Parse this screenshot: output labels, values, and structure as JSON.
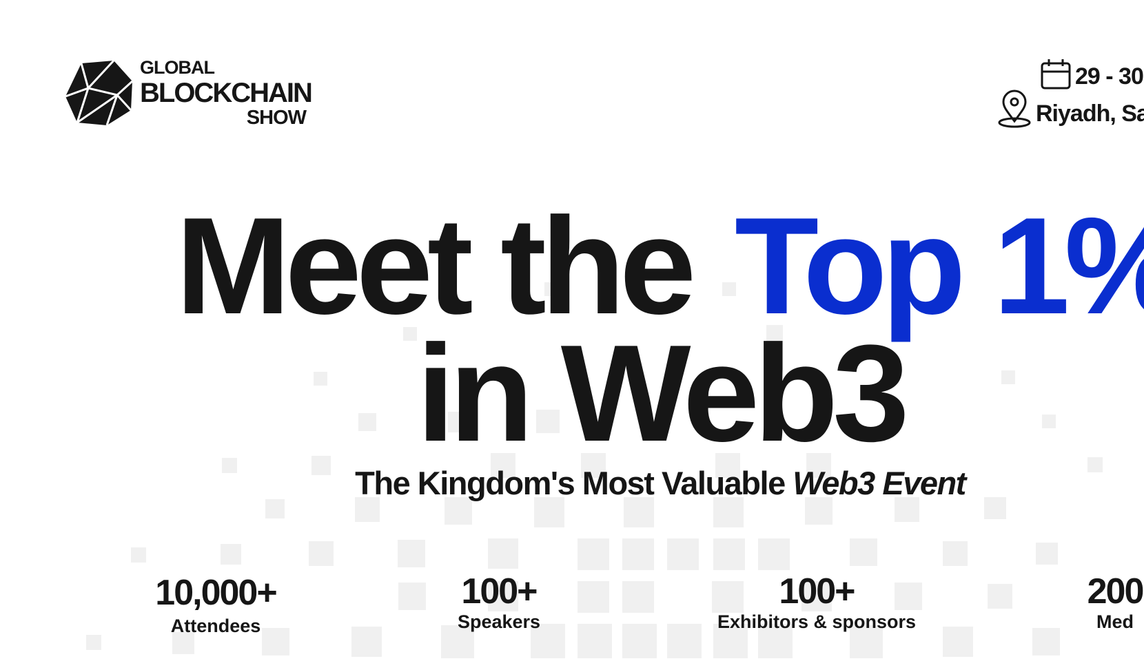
{
  "header": {
    "logo": [
      "GLOBAL",
      "BLOCKCHAIN",
      "SHOW"
    ],
    "date": "29 - 30",
    "location": "Riyadh, Sa"
  },
  "hero": {
    "headline": [
      "Meet the",
      "Top 1%",
      "in Web3"
    ],
    "subtitle": [
      "The Kingdom's Most Valuable",
      "Web3 Event"
    ]
  },
  "stats": [
    {
      "value": "10,000+",
      "label": "Attendees"
    },
    {
      "value": "100+",
      "label": "Speakers"
    },
    {
      "value": "100+",
      "label": "Exhibitors & sponsors"
    },
    {
      "value": "200",
      "label": "Med"
    }
  ]
}
